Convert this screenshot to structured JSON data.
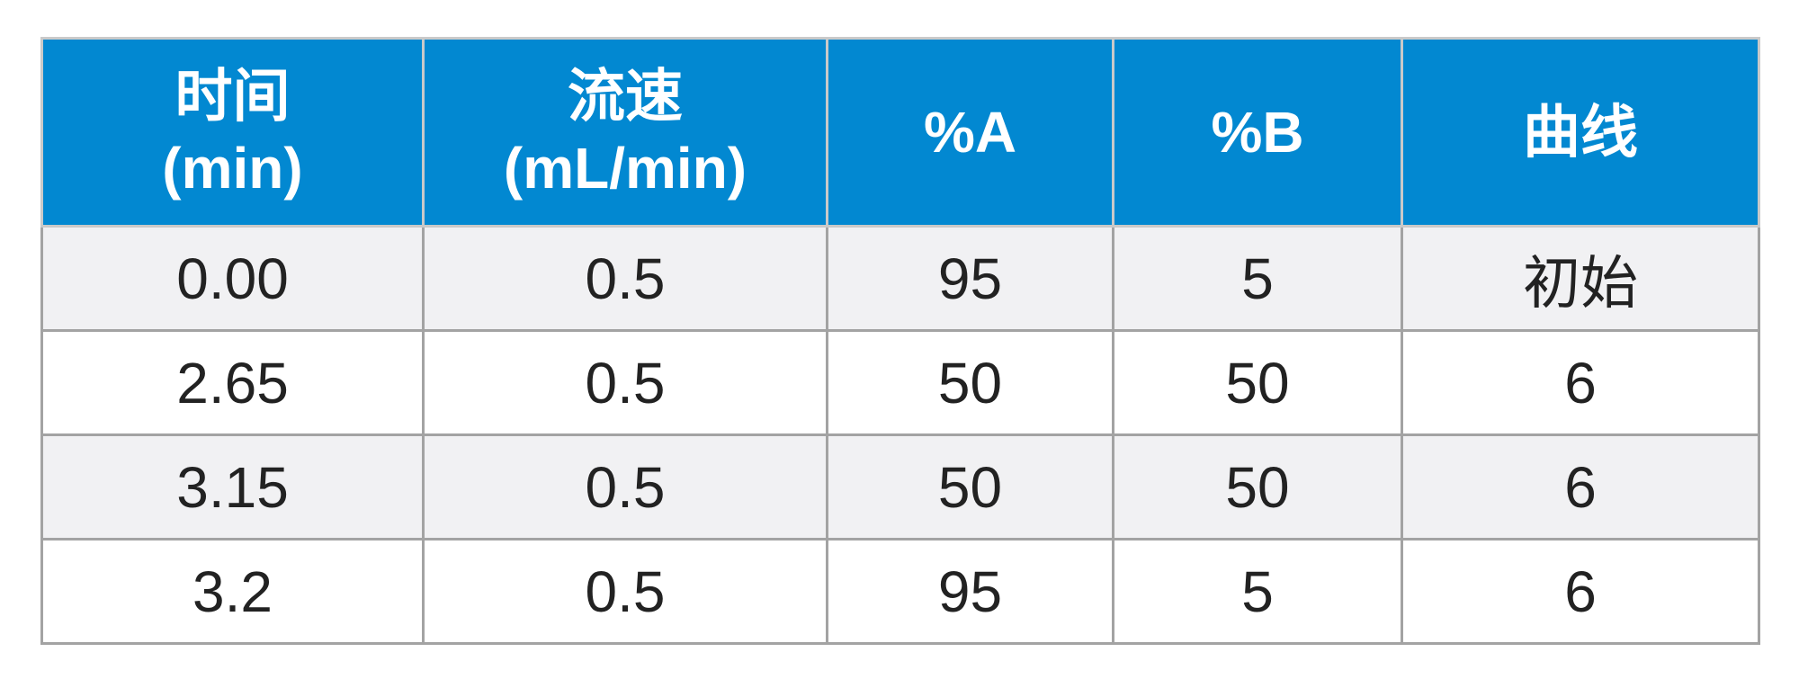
{
  "table": {
    "header": [
      [
        "时间",
        "(min)"
      ],
      [
        "流速",
        "(mL/min)"
      ],
      [
        "%A"
      ],
      [
        "%B"
      ],
      [
        "曲线"
      ]
    ],
    "rows": [
      [
        "0.00",
        "0.5",
        "95",
        "5",
        "初始"
      ],
      [
        "2.65",
        "0.5",
        "50",
        "50",
        "6"
      ],
      [
        "3.15",
        "0.5",
        "50",
        "50",
        "6"
      ],
      [
        "3.2",
        "0.5",
        "95",
        "5",
        "6"
      ]
    ]
  }
}
